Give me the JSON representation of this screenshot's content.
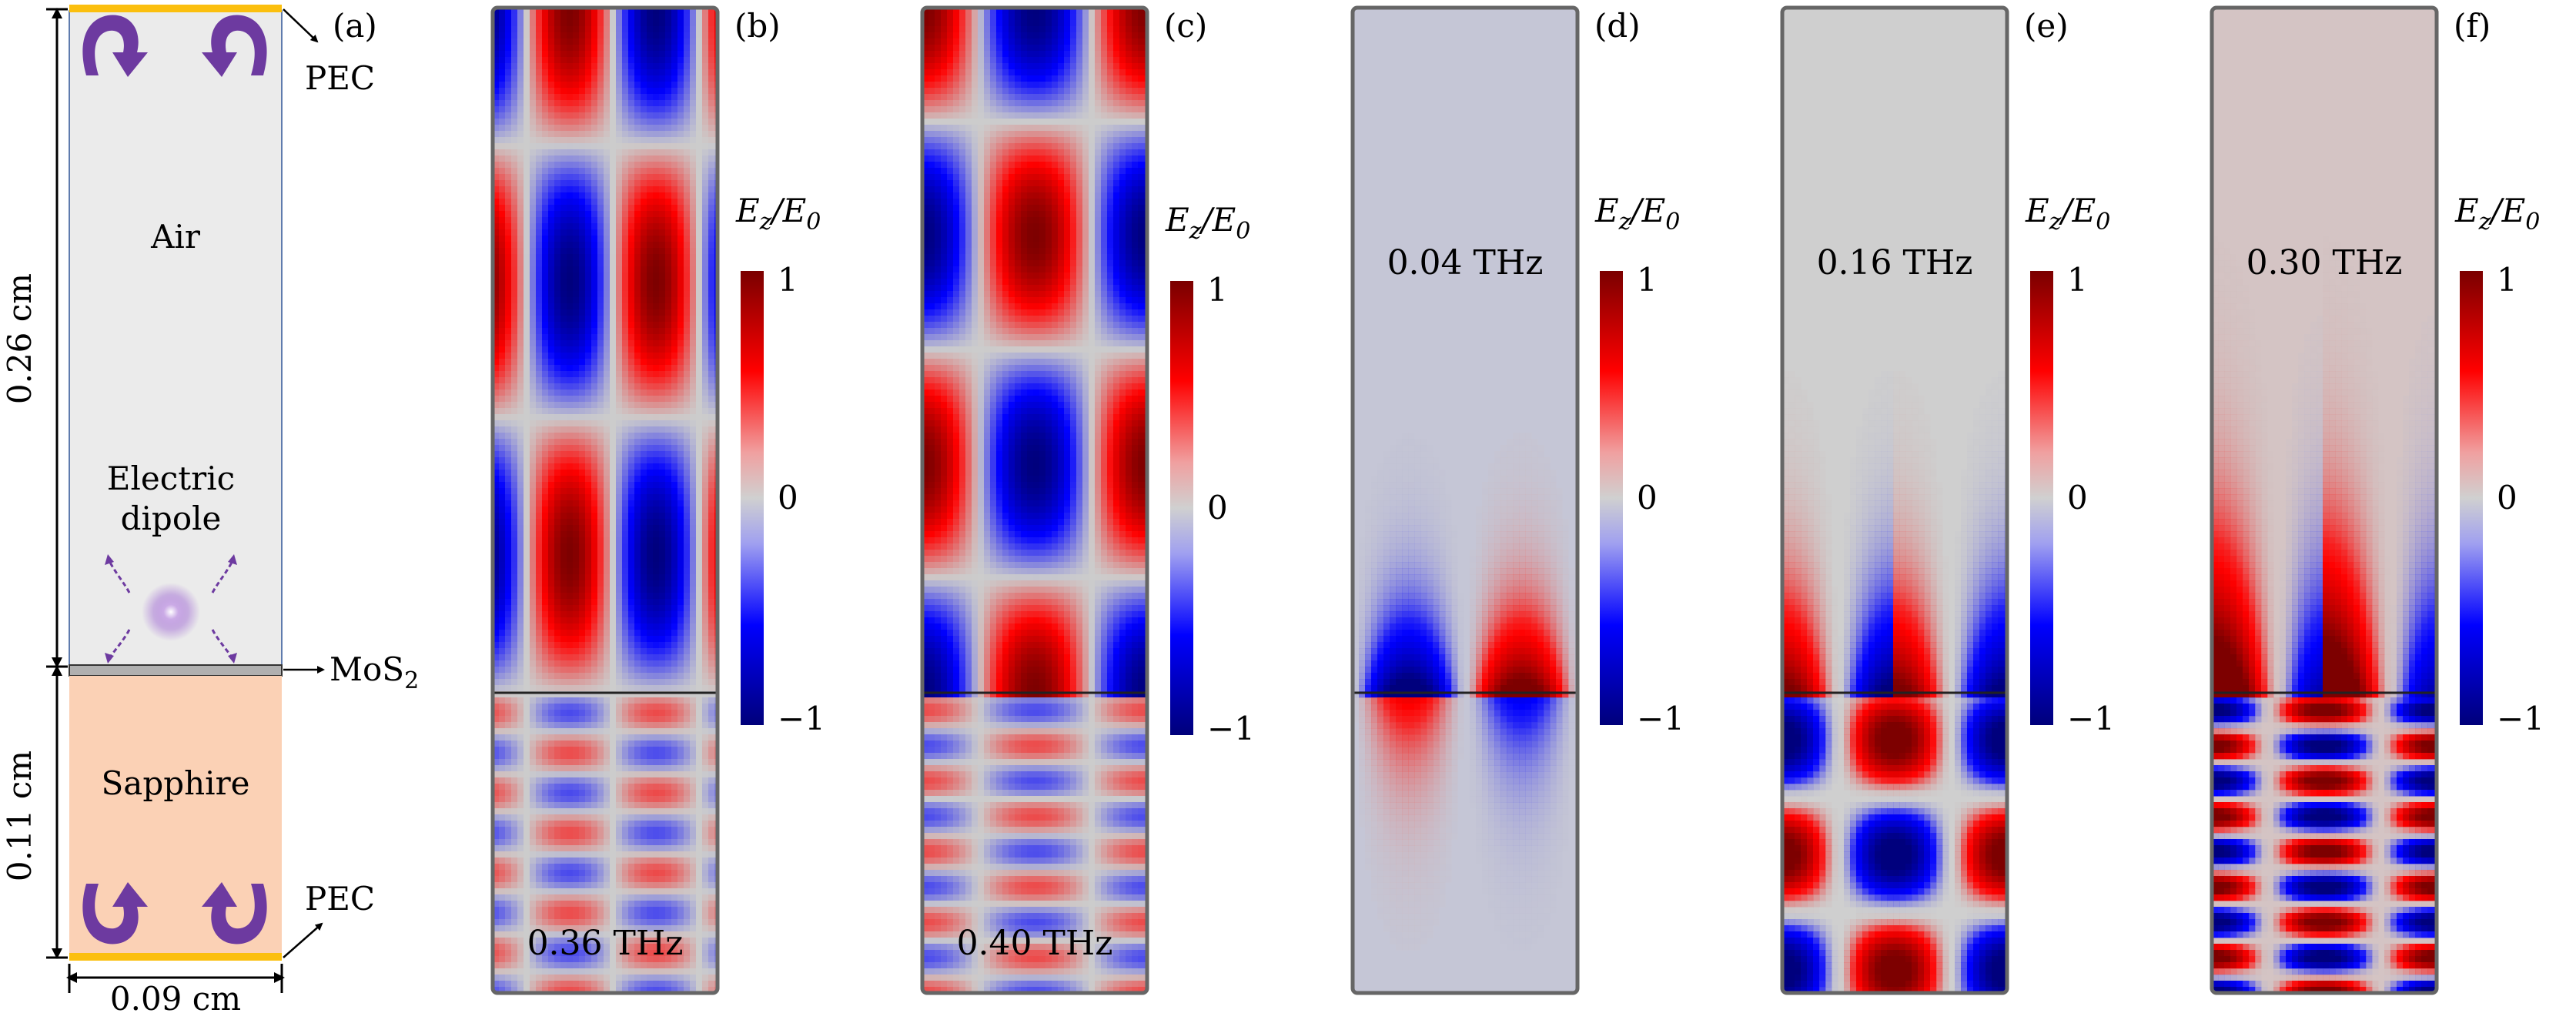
{
  "figure": {
    "colormap": {
      "neg": "#00008b",
      "mid": "#cccccc",
      "pos": "#8b0000",
      "bright_blue": "#0000ff",
      "bright_red": "#ff0000"
    },
    "panel_a": {
      "label": "(a)",
      "top_boundary": "PEC",
      "bottom_boundary": "PEC",
      "layer_label": "MoS",
      "layer_label_sub": "2",
      "air_label": "Air",
      "source_line1": "Electric",
      "source_line2": "dipole",
      "substrate_label": "Sapphire",
      "height_air": "0.26 cm",
      "height_sub": "0.11 cm",
      "width": "0.09 cm",
      "colors": {
        "air": "#ebebeb",
        "sapphire": "#fbd1b5",
        "pec": "#fbbf0e",
        "arrow": "#6d3aa0"
      }
    },
    "colorbar": {
      "label_main": "E",
      "label_sub1": "z",
      "label_sep": "/E",
      "label_sub2": "0",
      "tick_max": "1",
      "tick_mid": "0",
      "tick_min": "−1"
    },
    "panels": [
      {
        "id": "b",
        "label": "(b)",
        "freq": "0.36 THz",
        "kind": "cavity",
        "nx_air": 2.6,
        "ny_air": 2.5,
        "nx_sub": 2.6,
        "ny_sub": 7.5
      },
      {
        "id": "c",
        "label": "(c)",
        "freq": "0.40 THz",
        "kind": "cavity",
        "nx_air": 2.0,
        "ny_air": 3.0,
        "nx_sub": 2.0,
        "ny_sub": 8.5
      },
      {
        "id": "d",
        "label": "(d)",
        "freq": "0.04 THz",
        "kind": "surface",
        "order": 1,
        "amp_sub": 0.4,
        "tint": "#c5c6d6"
      },
      {
        "id": "e",
        "label": "(e)",
        "freq": "0.16 THz",
        "kind": "surface",
        "order": 2,
        "amp_sub": 1.0,
        "tint": "#cfcfcf"
      },
      {
        "id": "f",
        "label": "(f)",
        "freq": "0.30 THz",
        "kind": "surface",
        "order": 3,
        "amp_sub": 1.0,
        "tint": "#d4c4c4"
      }
    ]
  }
}
